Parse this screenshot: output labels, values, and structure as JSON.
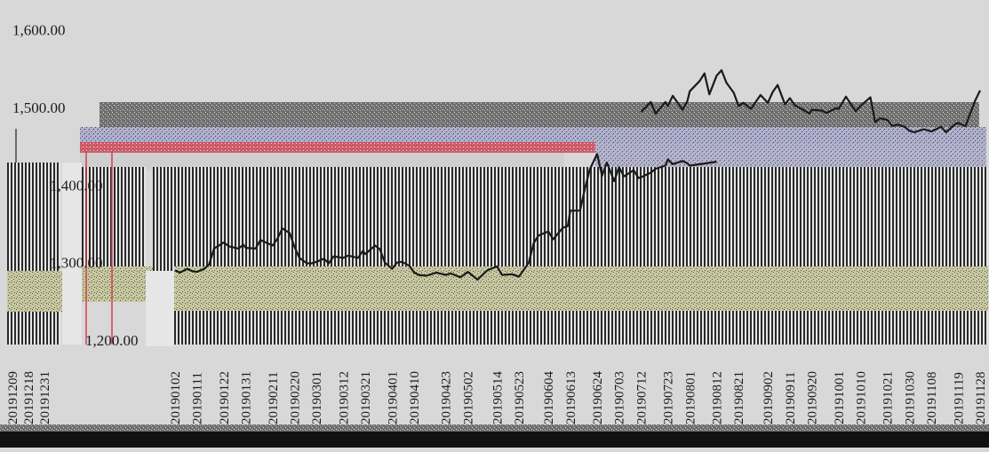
{
  "chart_data": {
    "type": "line",
    "title": "",
    "xlabel": "",
    "ylabel": "",
    "ylim": [
      1200,
      1600
    ],
    "yticks": [
      {
        "value": 1600,
        "label": "1,600.00"
      },
      {
        "value": 1500,
        "label": "1,500.00"
      },
      {
        "value": 1400,
        "label": "1,400.00"
      },
      {
        "value": 1300,
        "label": "1,300.00"
      },
      {
        "value": 1200,
        "label": "1,200.00"
      }
    ],
    "grid": false,
    "colors": {
      "background": "#d8d8d8",
      "line": "#1a1a1a",
      "bars_dark": "#2a2a2a",
      "band_olive": "#c8c8a0",
      "band_teal": "#5fd8c8",
      "band_pink": "#d04050",
      "band_lavender": "#b0b0d0",
      "band_gray": "#707070",
      "footer": "#111111"
    },
    "early_labels": [
      "20191209",
      "20191218",
      "20191231"
    ],
    "x_labels": [
      "20190102",
      "20190111",
      "20190122",
      "20190131",
      "20190211",
      "20190220",
      "20190301",
      "20190312",
      "20190321",
      "20190401",
      "20190410",
      "20190423",
      "20190502",
      "20190514",
      "20190523",
      "20190604",
      "20190613",
      "20190624",
      "20190703",
      "20190712",
      "20190723",
      "20190801",
      "20190812",
      "20190821",
      "20190902",
      "20190911",
      "20190920",
      "20191001",
      "20191010",
      "20191021",
      "20191030",
      "20191108",
      "20191119",
      "20191128"
    ],
    "series": [
      {
        "name": "",
        "points": [
          [
            "20190102",
            1290
          ],
          [
            "20190104",
            1287
          ],
          [
            "20190107",
            1292
          ],
          [
            "20190109",
            1289
          ],
          [
            "20190111",
            1288
          ],
          [
            "20190114",
            1292
          ],
          [
            "20190116",
            1298
          ],
          [
            "20190118",
            1318
          ],
          [
            "20190122",
            1326
          ],
          [
            "20190124",
            1321
          ],
          [
            "20190128",
            1318
          ],
          [
            "20190130",
            1323
          ],
          [
            "20190131",
            1319
          ],
          [
            "20190204",
            1318
          ],
          [
            "20190206",
            1329
          ],
          [
            "20190211",
            1322
          ],
          [
            "20190213",
            1331
          ],
          [
            "20190215",
            1344
          ],
          [
            "20190218",
            1338
          ],
          [
            "20190220",
            1320
          ],
          [
            "20190222",
            1306
          ],
          [
            "20190225",
            1299
          ],
          [
            "20190227",
            1299
          ],
          [
            "20190301",
            1301
          ],
          [
            "20190304",
            1305
          ],
          [
            "20190306",
            1299
          ],
          [
            "20190308",
            1308
          ],
          [
            "20190312",
            1306
          ],
          [
            "20190314",
            1309
          ],
          [
            "20190318",
            1306
          ],
          [
            "20190320",
            1315
          ],
          [
            "20190321",
            1311
          ],
          [
            "20190325",
            1322
          ],
          [
            "20190327",
            1317
          ],
          [
            "20190329",
            1300
          ],
          [
            "20190401",
            1292
          ],
          [
            "20190403",
            1300
          ],
          [
            "20190405",
            1301
          ],
          [
            "20190408",
            1296
          ],
          [
            "20190410",
            1287
          ],
          [
            "20190412",
            1284
          ],
          [
            "20190415",
            1283
          ],
          [
            "20190417",
            1285
          ],
          [
            "20190419",
            1287
          ],
          [
            "20190423",
            1284
          ],
          [
            "20190425",
            1286
          ],
          [
            "20190429",
            1281
          ],
          [
            "20190502",
            1288
          ],
          [
            "20190506",
            1278
          ],
          [
            "20190508",
            1284
          ],
          [
            "20190510",
            1290
          ],
          [
            "20190514",
            1295
          ],
          [
            "20190516",
            1284
          ],
          [
            "20190520",
            1285
          ],
          [
            "20190523",
            1282
          ],
          [
            "20190527",
            1300
          ],
          [
            "20190529",
            1325
          ],
          [
            "20190531",
            1335
          ],
          [
            "20190604",
            1340
          ],
          [
            "20190606",
            1330
          ],
          [
            "20190610",
            1345
          ],
          [
            "20190612",
            1347
          ],
          [
            "20190613",
            1367
          ],
          [
            "20190617",
            1367
          ],
          [
            "20190619",
            1395
          ],
          [
            "20190621",
            1420
          ],
          [
            "20190624",
            1440
          ],
          [
            "20190626",
            1412
          ],
          [
            "20190628",
            1429
          ],
          [
            "20190701",
            1405
          ],
          [
            "20190703",
            1423
          ],
          [
            "20190705",
            1411
          ],
          [
            "20190709",
            1419
          ],
          [
            "20190711",
            1409
          ],
          [
            "20190712",
            1410
          ],
          [
            "20190716",
            1416
          ],
          [
            "20190718",
            1421
          ],
          [
            "20190722",
            1425
          ],
          [
            "20190723",
            1433
          ],
          [
            "20190725",
            1427
          ],
          [
            "20190729",
            1431
          ],
          [
            "20190731",
            1428
          ],
          [
            "20190801",
            1425
          ],
          [
            "20190812",
            1430
          ]
        ]
      },
      {
        "name": "",
        "points": [
          [
            "20190712",
            1494
          ],
          [
            "20190716",
            1507
          ],
          [
            "20190718",
            1492
          ],
          [
            "20190722",
            1507
          ],
          [
            "20190723",
            1502
          ],
          [
            "20190725",
            1515
          ],
          [
            "20190729",
            1497
          ],
          [
            "20190731",
            1508
          ],
          [
            "20190801",
            1521
          ],
          [
            "20190805",
            1534
          ],
          [
            "20190807",
            1544
          ],
          [
            "20190809",
            1517
          ],
          [
            "20190812",
            1541
          ],
          [
            "20190814",
            1548
          ],
          [
            "20190816",
            1532
          ],
          [
            "20190819",
            1519
          ],
          [
            "20190821",
            1502
          ],
          [
            "20190823",
            1506
          ],
          [
            "20190826",
            1498
          ],
          [
            "20190828",
            1507
          ],
          [
            "20190830",
            1516
          ],
          [
            "20190902",
            1506
          ],
          [
            "20190904",
            1520
          ],
          [
            "20190906",
            1529
          ],
          [
            "20190909",
            1504
          ],
          [
            "20190911",
            1512
          ],
          [
            "20190913",
            1503
          ],
          [
            "20190917",
            1496
          ],
          [
            "20190919",
            1492
          ],
          [
            "20190920",
            1497
          ],
          [
            "20190924",
            1496
          ],
          [
            "20190926",
            1493
          ],
          [
            "20190930",
            1499
          ],
          [
            "20191001",
            1498
          ],
          [
            "20191004",
            1514
          ],
          [
            "20191008",
            1495
          ],
          [
            "20191010",
            1502
          ],
          [
            "20191014",
            1513
          ],
          [
            "20191016",
            1481
          ],
          [
            "20191018",
            1486
          ],
          [
            "20191021",
            1484
          ],
          [
            "20191023",
            1476
          ],
          [
            "20191025",
            1478
          ],
          [
            "20191028",
            1475
          ],
          [
            "20191030",
            1470
          ],
          [
            "20191101",
            1468
          ],
          [
            "20191105",
            1472
          ],
          [
            "20191108",
            1469
          ],
          [
            "20191112",
            1475
          ],
          [
            "20191114",
            1468
          ],
          [
            "20191118",
            1479
          ],
          [
            "20191119",
            1480
          ],
          [
            "20191122",
            1476
          ],
          [
            "20191126",
            1509
          ],
          [
            "20191128",
            1522
          ]
        ]
      }
    ]
  }
}
